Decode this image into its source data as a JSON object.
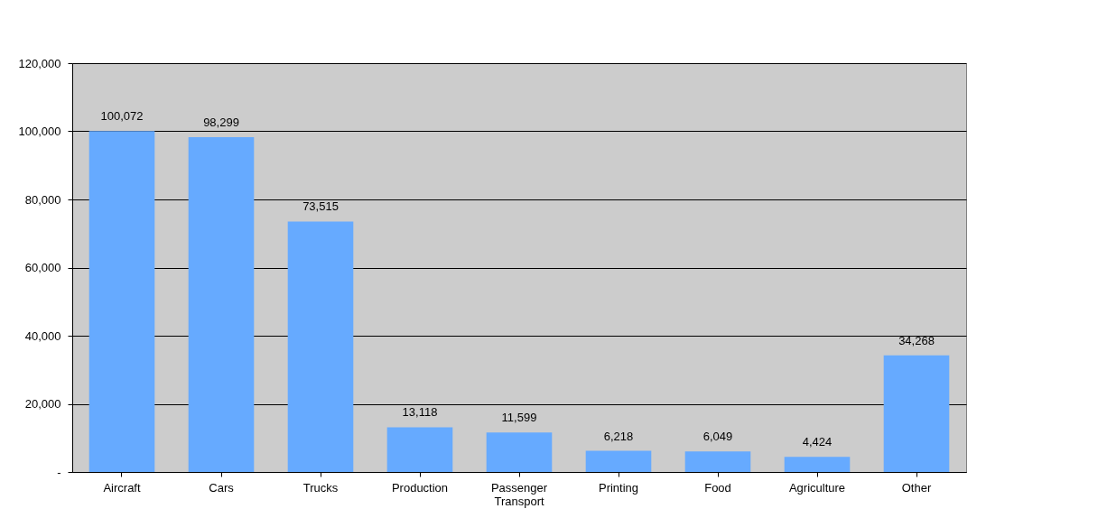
{
  "chart_data": {
    "type": "bar",
    "categories": [
      "Aircraft",
      "Cars",
      "Trucks",
      "Production",
      "Passenger Transport",
      "Printing",
      "Food",
      "Agriculture",
      "Other"
    ],
    "values": [
      100072,
      98299,
      73515,
      13118,
      11599,
      6218,
      6049,
      4424,
      34268
    ],
    "color": "#66aaff",
    "ylim": [
      0,
      120000
    ],
    "yticks": [
      {
        "value": 0,
        "label": "-"
      },
      {
        "value": 20000,
        "label": "20,000"
      },
      {
        "value": 40000,
        "label": "40,000"
      },
      {
        "value": 60000,
        "label": "60,000"
      },
      {
        "value": 80000,
        "label": "80,000"
      },
      {
        "value": 100000,
        "label": "100,000"
      },
      {
        "value": 120000,
        "label": "120,000"
      }
    ],
    "grid": "y",
    "value_labels": [
      "100,072",
      "98,299",
      "73,515",
      "13,118",
      "11,599",
      "6,218",
      "6,049",
      "4,424",
      "34,268"
    ]
  }
}
